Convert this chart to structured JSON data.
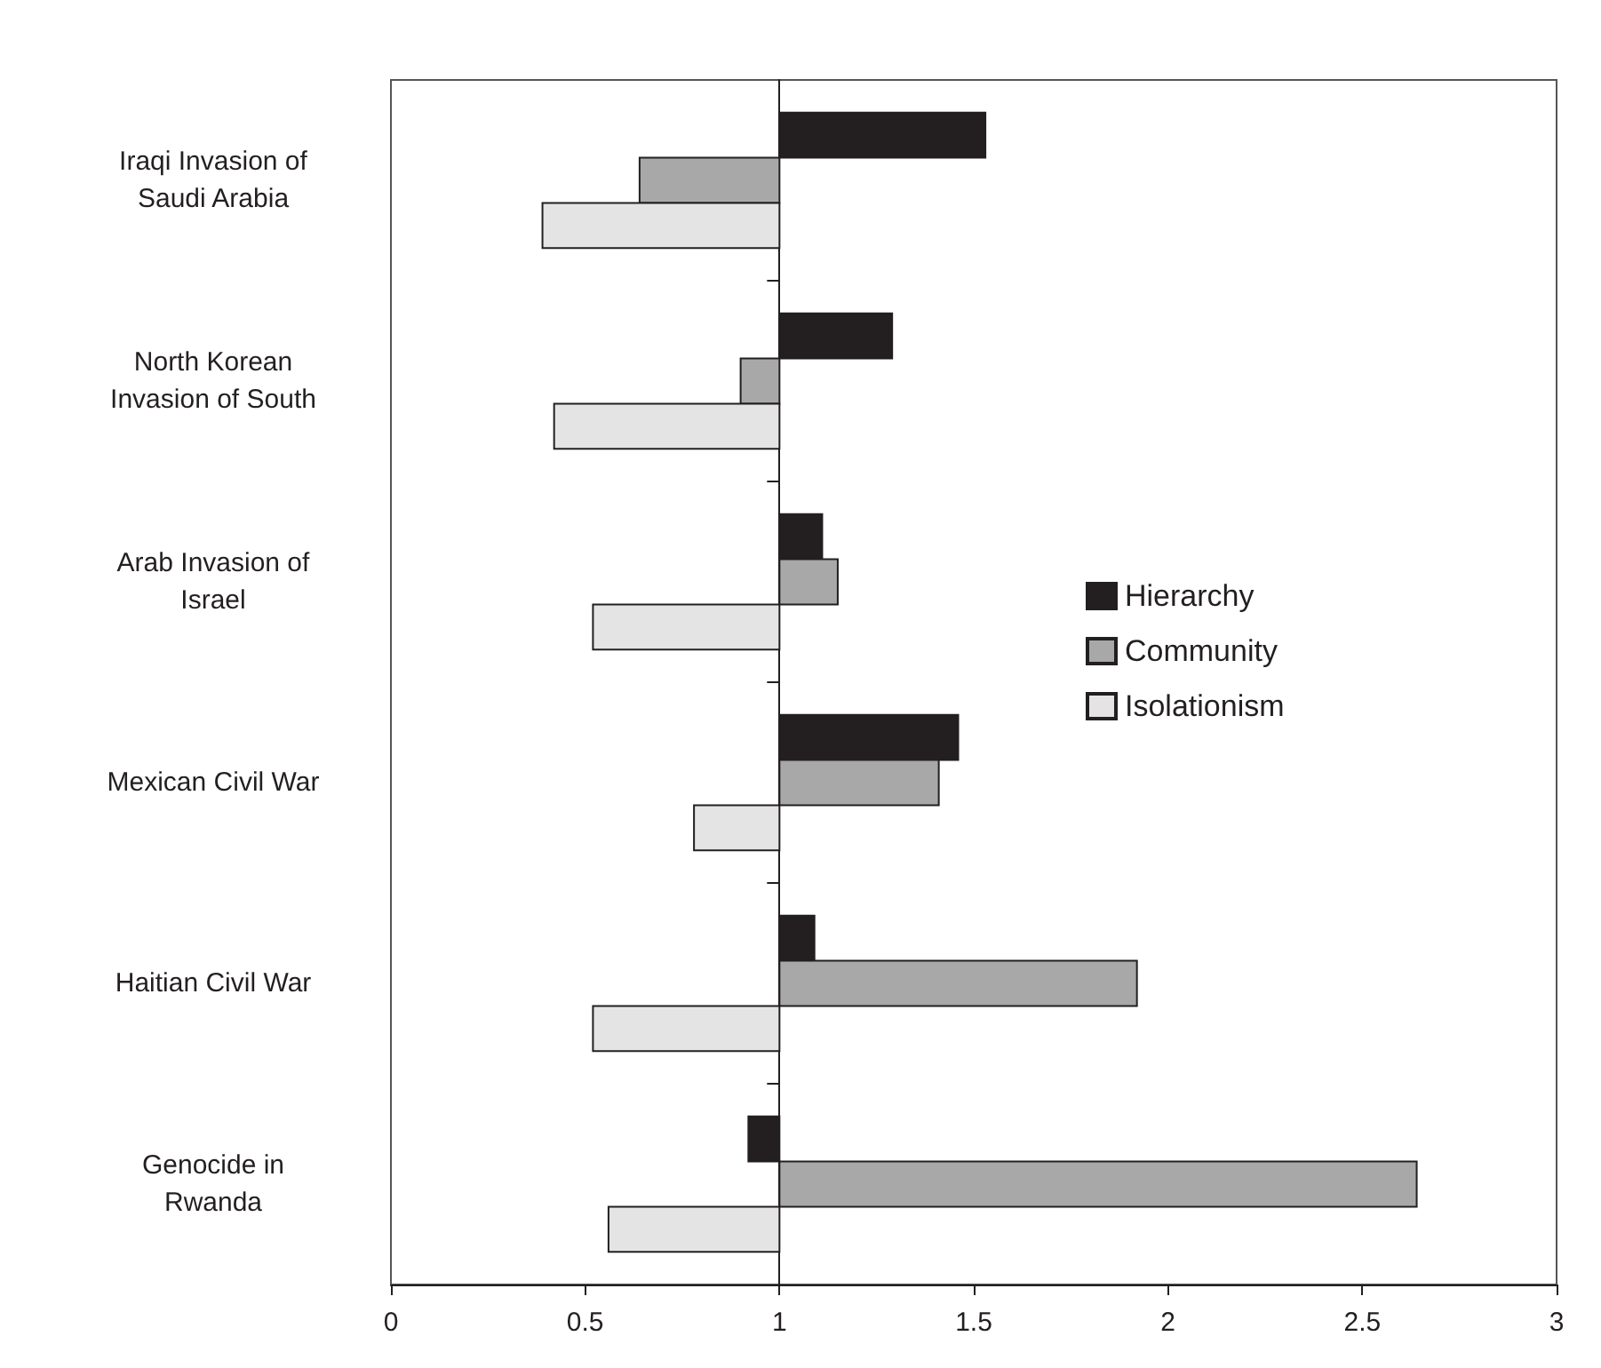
{
  "chart_data": {
    "type": "bar",
    "orientation": "horizontal",
    "categories": [
      "Iraqi Invasion of\nSaudi Arabia",
      "North Korean\nInvasion of South",
      "Arab Invasion of\nIsrael",
      "Mexican Civil War",
      "Haitian Civil War",
      "Genocide in\nRwanda"
    ],
    "series": [
      {
        "name": "Hierarchy",
        "color": "#231f20",
        "base": [
          1,
          1,
          1,
          1,
          1,
          1
        ],
        "values": [
          0.53,
          0.29,
          0.11,
          0.46,
          0.09,
          -0.08
        ]
      },
      {
        "name": "Community",
        "color": "#a8a8a8",
        "base": [
          1,
          1,
          1,
          1,
          1,
          1
        ],
        "values": [
          -0.36,
          -0.1,
          0.15,
          0.41,
          0.92,
          1.64
        ]
      },
      {
        "name": "Isolationism",
        "color": "#e4e4e4",
        "base": [
          1,
          1,
          1,
          1,
          1,
          1
        ],
        "values": [
          -0.61,
          -0.58,
          -0.48,
          -0.22,
          -0.48,
          -0.44
        ]
      }
    ],
    "xlim": [
      0,
      3
    ],
    "xticks": [
      0,
      0.5,
      1,
      1.5,
      2,
      2.5,
      3
    ],
    "legend": "right"
  }
}
